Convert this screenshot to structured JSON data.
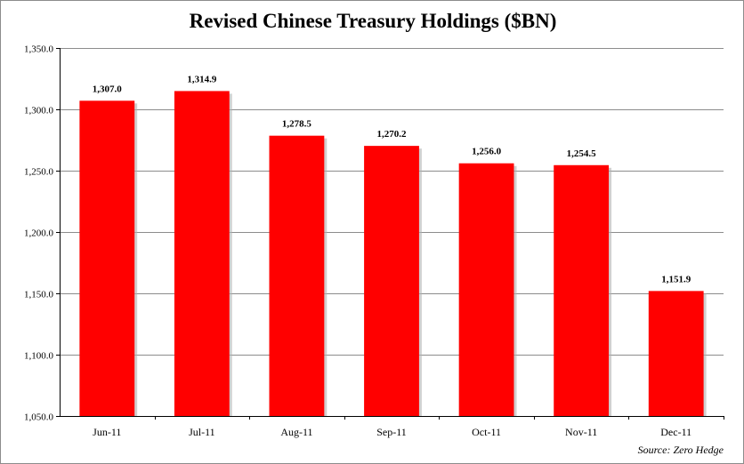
{
  "chart_data": {
    "type": "bar",
    "title": "Revised Chinese Treasury Holdings ($BN)",
    "categories": [
      "Jun-11",
      "Jul-11",
      "Aug-11",
      "Sep-11",
      "Oct-11",
      "Nov-11",
      "Dec-11"
    ],
    "values": [
      1307.0,
      1314.9,
      1278.5,
      1270.2,
      1256.0,
      1254.5,
      1151.9
    ],
    "data_labels": [
      "1,307.0",
      "1,314.9",
      "1,278.5",
      "1,270.2",
      "1,256.0",
      "1,254.5",
      "1,151.9"
    ],
    "y_ticks": [
      "1,050.0",
      "1,100.0",
      "1,150.0",
      "1,200.0",
      "1,250.0",
      "1,300.0",
      "1,350.0"
    ],
    "y_tick_values": [
      1050,
      1100,
      1150,
      1200,
      1250,
      1300,
      1350
    ],
    "ylim": [
      1050,
      1350
    ],
    "xlabel": "",
    "ylabel": "",
    "grid": true,
    "legend": "none",
    "bar_color": "#ff0000",
    "grid_color": "#8c8c8c"
  },
  "source_note": "Source: Zero Hedge"
}
